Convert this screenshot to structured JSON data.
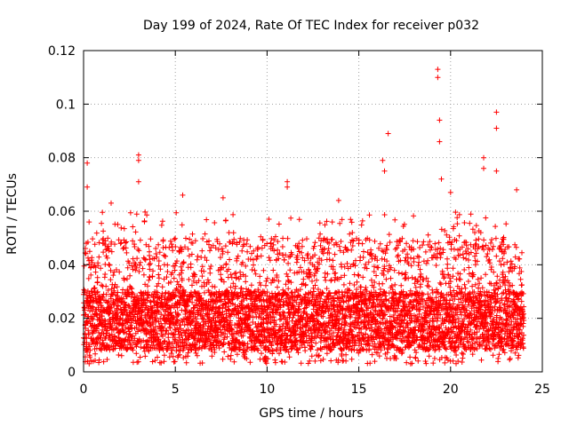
{
  "chart_data": {
    "type": "scatter",
    "title": "Day 199 of 2024, Rate Of TEC Index for receiver p032",
    "xlabel": "GPS time / hours",
    "ylabel": "ROTI / TECUs",
    "xlim": [
      0,
      25
    ],
    "ylim": [
      0,
      0.12
    ],
    "x_ticks": [
      0,
      5,
      10,
      15,
      20,
      25
    ],
    "x_tick_labels": [
      "0",
      "5",
      "10",
      "15",
      "20",
      "25"
    ],
    "y_ticks": [
      0,
      0.02,
      0.04,
      0.06,
      0.08,
      0.1,
      0.12
    ],
    "y_tick_labels": [
      "0",
      "0.02",
      "0.04",
      "0.06",
      "0.08",
      "0.1",
      "0.12"
    ],
    "grid": true,
    "marker": "+",
    "color": "#ff0000",
    "series": [
      {
        "name": "ROTI",
        "notable_points": [
          {
            "x": 0.2,
            "y": 0.078
          },
          {
            "x": 0.2,
            "y": 0.069
          },
          {
            "x": 0.3,
            "y": 0.056
          },
          {
            "x": 1.5,
            "y": 0.063
          },
          {
            "x": 3.0,
            "y": 0.081
          },
          {
            "x": 3.0,
            "y": 0.079
          },
          {
            "x": 3.0,
            "y": 0.071
          },
          {
            "x": 5.4,
            "y": 0.066
          },
          {
            "x": 7.6,
            "y": 0.065
          },
          {
            "x": 10.1,
            "y": 0.057
          },
          {
            "x": 11.1,
            "y": 0.071
          },
          {
            "x": 11.1,
            "y": 0.069
          },
          {
            "x": 13.9,
            "y": 0.064
          },
          {
            "x": 16.3,
            "y": 0.079
          },
          {
            "x": 16.4,
            "y": 0.075
          },
          {
            "x": 16.6,
            "y": 0.089
          },
          {
            "x": 19.3,
            "y": 0.113
          },
          {
            "x": 19.3,
            "y": 0.11
          },
          {
            "x": 19.4,
            "y": 0.094
          },
          {
            "x": 19.4,
            "y": 0.086
          },
          {
            "x": 19.5,
            "y": 0.072
          },
          {
            "x": 20.0,
            "y": 0.067
          },
          {
            "x": 21.8,
            "y": 0.08
          },
          {
            "x": 21.8,
            "y": 0.076
          },
          {
            "x": 22.5,
            "y": 0.097
          },
          {
            "x": 22.5,
            "y": 0.091
          },
          {
            "x": 22.5,
            "y": 0.075
          },
          {
            "x": 23.6,
            "y": 0.068
          }
        ],
        "bulk_band": {
          "x_range": [
            0,
            24
          ],
          "y_min": 0.003,
          "y_typical": [
            0.008,
            0.03
          ],
          "y_upper": 0.05
        }
      }
    ]
  }
}
